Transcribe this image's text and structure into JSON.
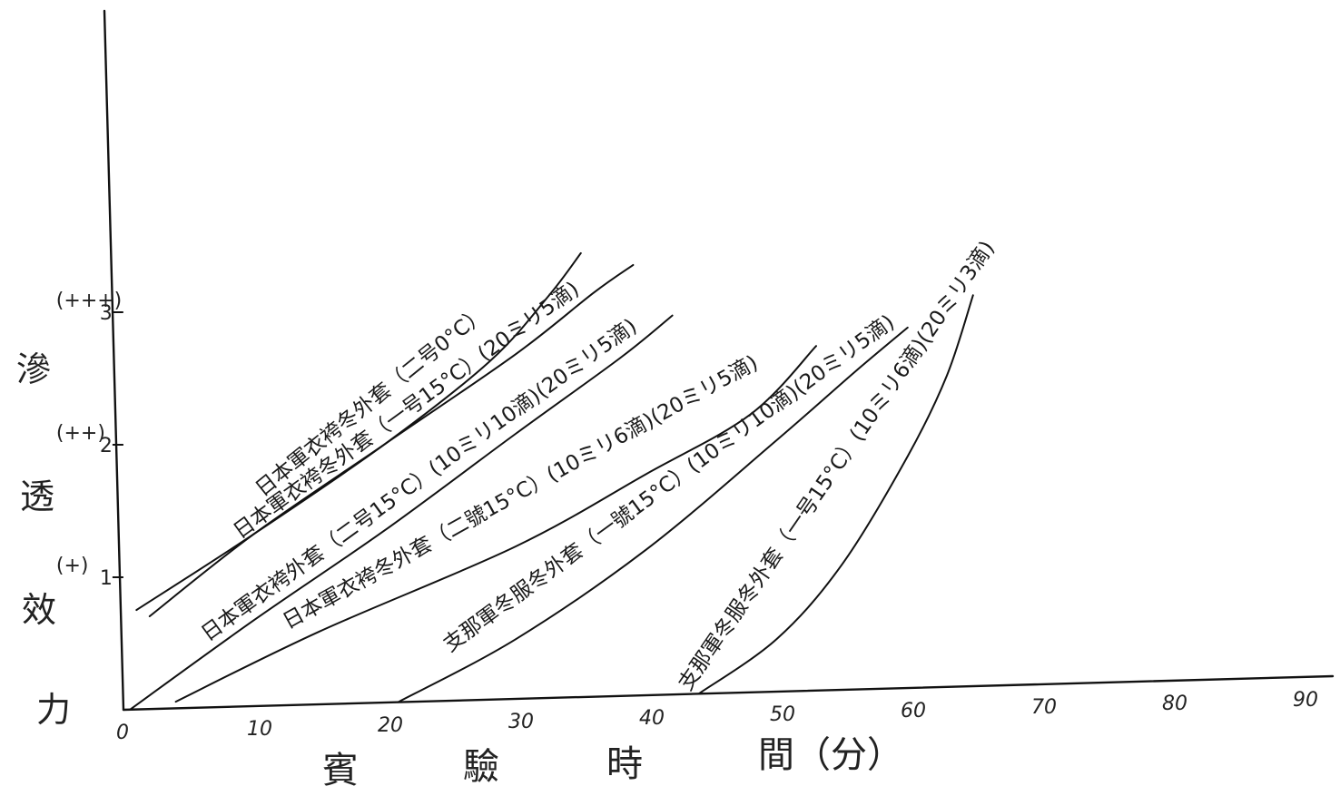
{
  "chart_data": {
    "type": "line",
    "title": "",
    "xlabel_chars": [
      "賓",
      "驗",
      "時",
      "間（分）"
    ],
    "x_ticks": [
      "0",
      "10",
      "20",
      "30",
      "40",
      "50",
      "60",
      "70",
      "80",
      "90"
    ],
    "xlim": [
      0,
      90
    ],
    "ylabel_chars": [
      "滲",
      "透",
      "效",
      "力"
    ],
    "y_ticks": [
      {
        "value": 1,
        "mark": "(+)",
        "number": "1"
      },
      {
        "value": 2,
        "mark": "(++)",
        "number": "2"
      },
      {
        "value": 3,
        "mark": "(+++)",
        "number": "3"
      }
    ],
    "ylim": [
      0,
      3
    ],
    "series": [
      {
        "name": "日本軍衣袴冬外套（二号0°C）",
        "points": [
          [
            1,
            0.75
          ],
          [
            10,
            1.3
          ],
          [
            20,
            1.95
          ],
          [
            28,
            2.55
          ],
          [
            32.5,
            3.03
          ],
          [
            35,
            3.35
          ]
        ]
      },
      {
        "name": "日本軍衣袴冬外套（一号15°C）(20ミリ5滴)",
        "points": [
          [
            2,
            0.7
          ],
          [
            10,
            1.3
          ],
          [
            20,
            1.95
          ],
          [
            30,
            2.6
          ],
          [
            36,
            3.05
          ],
          [
            39,
            3.25
          ]
        ]
      },
      {
        "name": "日本軍衣袴外套（二号15°C）(10ミリ10滴)(20ミリ5滴)",
        "points": [
          [
            0.5,
            0
          ],
          [
            10,
            0.65
          ],
          [
            20,
            1.3
          ],
          [
            30,
            2.0
          ],
          [
            38,
            2.55
          ],
          [
            42,
            2.86
          ]
        ]
      },
      {
        "name": "日本軍衣袴冬外套（二號15°C）(10ミリ6滴)(20ミリ5滴)",
        "points": [
          [
            4,
            0.05
          ],
          [
            15,
            0.55
          ],
          [
            30,
            1.15
          ],
          [
            40,
            1.67
          ],
          [
            48,
            2.1
          ],
          [
            53,
            2.6
          ]
        ]
      },
      {
        "name": "支那軍冬服冬外套（一號15°C）(10ミリ10滴)(20ミリ5滴)",
        "points": [
          [
            21,
            0
          ],
          [
            30,
            0.45
          ],
          [
            40,
            1.1
          ],
          [
            50,
            1.9
          ],
          [
            56,
            2.4
          ],
          [
            60,
            2.72
          ]
        ]
      },
      {
        "name": "支那軍冬服冬外套（一号15°C）(10ミリ6滴)(20ミリ3滴)",
        "points": [
          [
            44,
            0
          ],
          [
            50,
            0.4
          ],
          [
            55,
            0.95
          ],
          [
            60,
            1.75
          ],
          [
            63,
            2.35
          ],
          [
            65,
            2.95
          ]
        ]
      }
    ]
  }
}
